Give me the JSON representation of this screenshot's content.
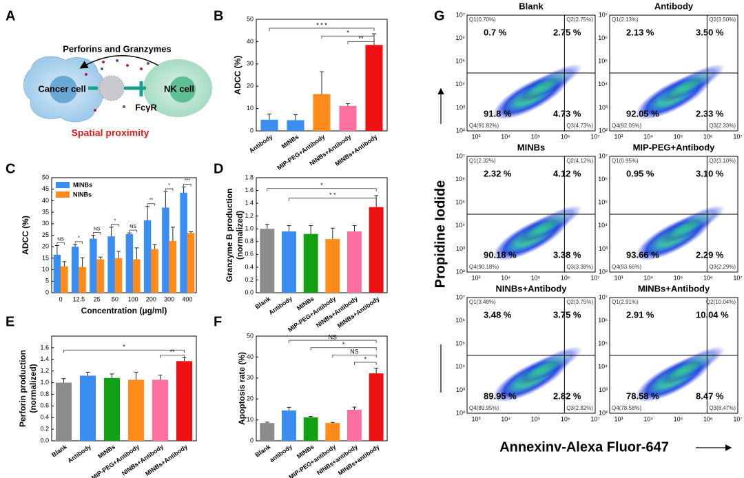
{
  "panel_labels": [
    "A",
    "B",
    "C",
    "D",
    "E",
    "F",
    "G"
  ],
  "diagram": {
    "title": "Perforins and Granzymes",
    "cancer_cell": "Cancer cell",
    "nk_cell": "NK cell",
    "receptor": "FcγR",
    "caption": "Spatial proximity"
  },
  "chart_data": [
    {
      "type": "bar",
      "ylabel": [
        "ADCC (%)"
      ],
      "categories": [
        "Antibody",
        "MINBs",
        "MIP-PEG+Antibody",
        "NINBs+Antibody",
        "MINBs+Antibody"
      ],
      "values": [
        5,
        4.8,
        16.5,
        11.2,
        38.5
      ],
      "errors": [
        2.5,
        2.5,
        10,
        1,
        5
      ],
      "colors": [
        "#3a8ef2",
        "#3a8ef2",
        "#ff8c1a",
        "#fc6fa0",
        "#ee1111"
      ],
      "ylim": [
        0,
        50
      ],
      "yticks": [
        0,
        10,
        20,
        30,
        40,
        50
      ],
      "annotations": [
        "* * *",
        "*",
        "**"
      ]
    },
    {
      "type": "grouped_bar",
      "ylabel": [
        "ADCC (%)"
      ],
      "xlabel": "Concentration (μg/ml)",
      "categories": [
        "0",
        "12.5",
        "25",
        "50",
        "100",
        "200",
        "300",
        "400"
      ],
      "series": [
        {
          "name": "MINBs",
          "color": "#3a8ef2",
          "values": [
            16.5,
            20,
            23.5,
            24.5,
            25.5,
            31.5,
            37,
            43.5
          ],
          "errors": [
            4,
            1,
            1.5,
            4,
            0.5,
            6,
            7,
            2.5
          ]
        },
        {
          "name": "NINBs",
          "color": "#ff8c1a",
          "values": [
            11.5,
            11.2,
            14.5,
            15,
            14.5,
            19,
            22.5,
            26
          ],
          "errors": [
            2,
            4,
            1,
            3,
            5,
            2,
            6,
            0.5
          ]
        }
      ],
      "ylim": [
        0,
        50
      ],
      "yticks": [
        0,
        5,
        10,
        15,
        20,
        25,
        30,
        35,
        40,
        45,
        50
      ],
      "legend": "upper left",
      "annotations": [
        "NS",
        "*",
        "NS",
        "*",
        "NS",
        "**",
        "*",
        "***"
      ]
    },
    {
      "type": "bar",
      "ylabel": [
        "Granzyme B production",
        "(normalized)"
      ],
      "categories": [
        "Blank",
        "Antibody",
        "MINBs",
        "MIP-PEG+Antibody",
        "NINBs+Antibody",
        "MINBs+Antibody"
      ],
      "values": [
        1.0,
        0.96,
        0.92,
        0.84,
        0.96,
        1.34
      ],
      "errors": [
        0.07,
        0.09,
        0.13,
        0.17,
        0.09,
        0.18
      ],
      "colors": [
        "#8c8c8c",
        "#3a8ef2",
        "#14a014",
        "#ff8c1a",
        "#fc6fa0",
        "#ee1111"
      ],
      "ylim": [
        0,
        1.8
      ],
      "yticks": [
        {
          "value": 0,
          "label": "0.0"
        },
        0.2,
        0.4,
        0.6,
        0.8,
        {
          "value": 1,
          "label": "1.0"
        },
        1.2,
        1.4,
        1.6,
        1.8
      ],
      "annotations": [
        "*",
        "* *"
      ]
    },
    {
      "type": "bar",
      "ylabel": [
        "Perforin production",
        "(normalized)"
      ],
      "categories": [
        "Blank",
        "Antibody",
        "MINBs",
        "MIP-PEG+Antibody",
        "NINBs+Antibody",
        "MINBs+Antibody"
      ],
      "values": [
        1.0,
        1.12,
        1.08,
        1.05,
        1.05,
        1.37
      ],
      "errors": [
        0.07,
        0.06,
        0.07,
        0.13,
        0.08,
        0.06
      ],
      "colors": [
        "#8c8c8c",
        "#3a8ef2",
        "#14a014",
        "#ff8c1a",
        "#fc6fa0",
        "#ee1111"
      ],
      "ylim": [
        0,
        1.8
      ],
      "yticks": [
        {
          "value": 0,
          "label": "0.0"
        },
        0.2,
        0.4,
        0.6,
        0.8,
        {
          "value": 1,
          "label": "1.0"
        },
        1.2,
        1.4,
        1.6
      ],
      "annotations": [
        "*",
        "**"
      ]
    },
    {
      "type": "bar",
      "ylabel": [
        "Apoptosis rate (%)"
      ],
      "categories": [
        "Blank",
        "antibody",
        "MINBs",
        "MIP-PEG+antibody",
        "NINBs+antibody",
        "MINBs+antibody"
      ],
      "values": [
        8.5,
        14.5,
        11.2,
        8.5,
        14.8,
        32.2
      ],
      "errors": [
        0.4,
        1.5,
        0.5,
        0.3,
        1.3,
        2.5
      ],
      "colors": [
        "#8c8c8c",
        "#3a8ef2",
        "#14a014",
        "#ff8c1a",
        "#fc6fa0",
        "#ee1111"
      ],
      "ylim": [
        0,
        50
      ],
      "yticks": [
        0,
        10,
        20,
        30,
        40,
        50
      ],
      "annotations": [
        "NS",
        "*",
        "NS",
        "*"
      ]
    }
  ],
  "flow_cytometry": {
    "x_label": "Annexinv-Alexa Fluor-647",
    "y_label": "Propidine Iodide",
    "xticks": [
      "10³",
      "10⁴",
      "10⁵",
      "10⁶",
      "10⁷"
    ],
    "yticks": [
      "10²",
      "10³",
      "10⁴",
      "10⁵",
      "10⁶",
      "10⁷"
    ],
    "plots": [
      {
        "title": "Blank",
        "q1_label": "Q1(0.70%)",
        "q2_label": "Q2(2.75%)",
        "q3_label": "Q3(4.73%)",
        "q4_label": "Q4(91.82%)",
        "q1": "0.7 %",
        "q2": "2.75 %",
        "q3": "4.73 %",
        "q4": "91.8 %"
      },
      {
        "title": "Antibody",
        "q1_label": "Q1(2.13%)",
        "q2_label": "Q2(3.50%)",
        "q3_label": "Q3(2.33%)",
        "q4_label": "Q4(92.05%)",
        "q1": "2.13 %",
        "q2": "3.50 %",
        "q3": "2.33 %",
        "q4": "92.05 %"
      },
      {
        "title": "MINBs",
        "q1_label": "Q1(2.32%)",
        "q2_label": "Q2(4.12%)",
        "q3_label": "Q3(3.38%)",
        "q4_label": "Q4(90.18%)",
        "q1": "2.32 %",
        "q2": "4.12 %",
        "q3": "3.38 %",
        "q4": "90.18 %"
      },
      {
        "title": "MIP-PEG+Antibody",
        "q1_label": "Q1(0.95%)",
        "q2_label": "Q2(3.10%)",
        "q3_label": "Q3(2.29%)",
        "q4_label": "Q4(93.66%)",
        "q1": "0.95 %",
        "q2": "3.10 %",
        "q3": "2.29 %",
        "q4": "93.66 %"
      },
      {
        "title": "NINBs+Antibody",
        "q1_label": "Q1(3.48%)",
        "q2_label": "Q2(3.75%)",
        "q3_label": "Q3(2.82%)",
        "q4_label": "Q4(89.95%)",
        "q1": "3.48 %",
        "q2": "3.75 %",
        "q3": "2.82 %",
        "q4": "89.95 %"
      },
      {
        "title": "MINBs+Antibody",
        "q1_label": "Q1(2.91%)",
        "q2_label": "Q2(10.04%)",
        "q3_label": "Q3(8.47%)",
        "q4_label": "Q4(78.58%)",
        "q1": "2.91 %",
        "q2": "10.04 %",
        "q3": "8.47 %",
        "q4": "78.58 %"
      }
    ]
  }
}
